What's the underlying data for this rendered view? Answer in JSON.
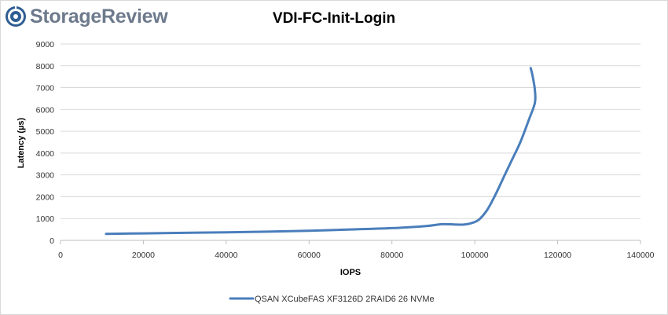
{
  "brand": {
    "name": "StorageReview"
  },
  "chart_data": {
    "type": "line",
    "title": "VDI-FC-Init-Login",
    "xlabel": "IOPS",
    "ylabel": "Latency (µs)",
    "xlim": [
      0,
      140000
    ],
    "ylim": [
      0,
      9000
    ],
    "x_ticks": [
      0,
      20000,
      40000,
      60000,
      80000,
      100000,
      120000,
      140000
    ],
    "y_ticks": [
      0,
      1000,
      2000,
      3000,
      4000,
      5000,
      6000,
      7000,
      8000,
      9000
    ],
    "grid": "horizontal",
    "legend_position": "bottom",
    "series": [
      {
        "name": "QSAN XCubeFAS XF3126D 2RAID6 26 NVMe",
        "color": "#4a7ebb",
        "points": [
          [
            11000,
            300
          ],
          [
            20000,
            320
          ],
          [
            30000,
            345
          ],
          [
            40000,
            370
          ],
          [
            50000,
            400
          ],
          [
            60000,
            440
          ],
          [
            70000,
            500
          ],
          [
            80000,
            560
          ],
          [
            88000,
            650
          ],
          [
            92000,
            740
          ],
          [
            95000,
            730
          ],
          [
            97000,
            720
          ],
          [
            99000,
            780
          ],
          [
            101000,
            950
          ],
          [
            103000,
            1400
          ],
          [
            105000,
            2100
          ],
          [
            107000,
            2900
          ],
          [
            109000,
            3700
          ],
          [
            111000,
            4500
          ],
          [
            113000,
            5500
          ],
          [
            114500,
            6300
          ],
          [
            114500,
            6900
          ],
          [
            114000,
            7500
          ],
          [
            113500,
            7900
          ]
        ]
      }
    ]
  }
}
